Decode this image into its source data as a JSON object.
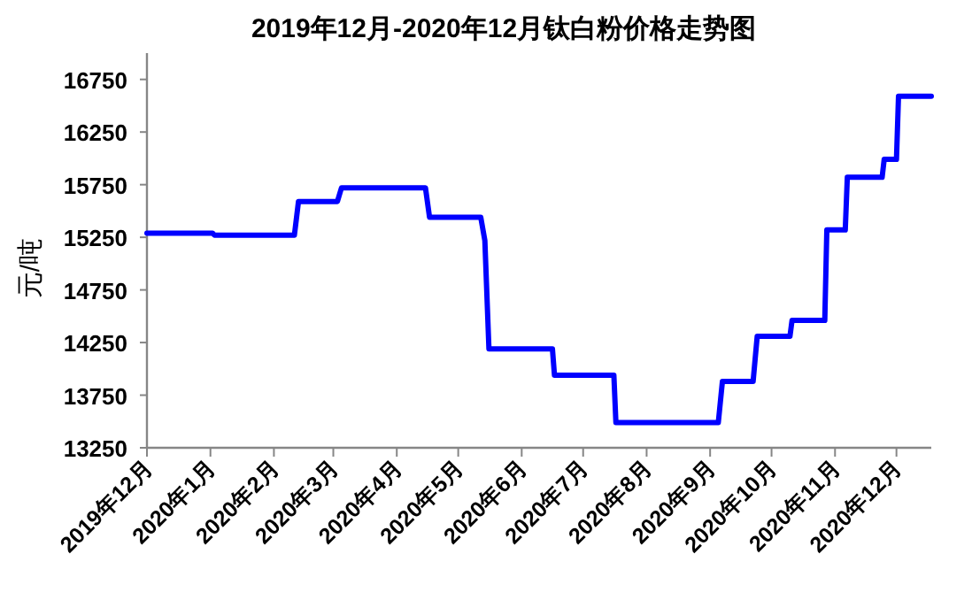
{
  "chart_data": {
    "type": "line",
    "title": "2019年12月-2020年12月钛白粉价格走势图",
    "ylabel": "元/吨",
    "series": [
      {
        "color": "#0000ff",
        "line_style": "solid",
        "x": [
          "2019-12-01",
          "2020-01-02",
          "2020-01-03",
          "2020-02-11",
          "2020-02-13",
          "2020-03-03",
          "2020-03-05",
          "2020-04-15",
          "2020-04-17",
          "2020-05-12",
          "2020-05-14",
          "2020-05-16",
          "2020-06-16",
          "2020-06-17",
          "2020-07-16",
          "2020-07-17",
          "2020-09-05",
          "2020-09-07",
          "2020-09-22",
          "2020-09-24",
          "2020-10-10",
          "2020-10-11",
          "2020-10-27",
          "2020-10-28",
          "2020-11-06",
          "2020-11-07",
          "2020-11-24",
          "2020-11-25",
          "2020-12-01",
          "2020-12-02",
          "2020-12-18"
        ],
        "values": [
          15290,
          15290,
          15270,
          15270,
          15590,
          15590,
          15720,
          15720,
          15440,
          15440,
          15220,
          14190,
          14190,
          13940,
          13940,
          13490,
          13490,
          13880,
          13880,
          14310,
          14310,
          14460,
          14460,
          15320,
          15320,
          15820,
          15820,
          15990,
          15990,
          16590,
          16590
        ]
      }
    ],
    "xlim": [
      "2019-12-01",
      "2020-12-18"
    ],
    "xticks": [
      {
        "value": "2019-12-01",
        "label": "2019年12月"
      },
      {
        "value": "2020-01-01",
        "label": "2020年1月"
      },
      {
        "value": "2020-02-01",
        "label": "2020年2月"
      },
      {
        "value": "2020-03-01",
        "label": "2020年3月"
      },
      {
        "value": "2020-04-01",
        "label": "2020年4月"
      },
      {
        "value": "2020-05-01",
        "label": "2020年5月"
      },
      {
        "value": "2020-06-01",
        "label": "2020年6月"
      },
      {
        "value": "2020-07-01",
        "label": "2020年7月"
      },
      {
        "value": "2020-08-01",
        "label": "2020年8月"
      },
      {
        "value": "2020-09-01",
        "label": "2020年9月"
      },
      {
        "value": "2020-10-01",
        "label": "2020年10月"
      },
      {
        "value": "2020-11-01",
        "label": "2020年11月"
      },
      {
        "value": "2020-12-01",
        "label": "2020年12月"
      }
    ],
    "ylim": [
      13250,
      17000
    ],
    "yticks": [
      13250,
      13750,
      14250,
      14750,
      15250,
      15750,
      16250,
      16750
    ]
  }
}
